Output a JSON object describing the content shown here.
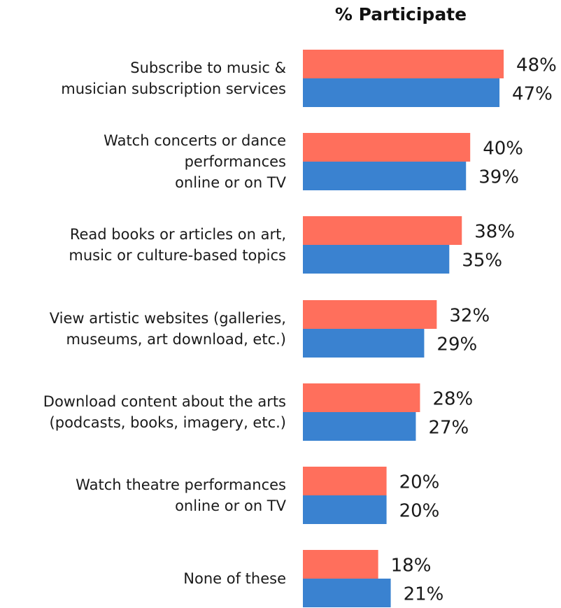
{
  "chart_data": {
    "type": "bar",
    "orientation": "horizontal",
    "title": "% Participate",
    "xlabel": "",
    "ylabel": "",
    "xlim": [
      0,
      50
    ],
    "grid": false,
    "legend": "none",
    "categories": [
      "Subscribe to music &\nmusician subscription services",
      "Watch concerts or dance\nperformances\nonline or on TV",
      "Read books or articles on art,\nmusic or culture-based topics",
      "View artistic websites (galleries,\nmuseums, art download, etc.)",
      "Download content about the arts\n(podcasts, books, imagery, etc.)",
      "Watch theatre performances\nonline or on TV",
      "None of these"
    ],
    "series": [
      {
        "color": "#FF6F5C",
        "values": [
          48,
          40,
          38,
          32,
          28,
          20,
          18
        ],
        "labels": [
          "48%",
          "40%",
          "38%",
          "32%",
          "28%",
          "20%",
          "18%"
        ]
      },
      {
        "color": "#3A82D0",
        "values": [
          47,
          39,
          35,
          29,
          27,
          20,
          21
        ],
        "labels": [
          "47%",
          "39%",
          "35%",
          "29%",
          "27%",
          "20%",
          "21%"
        ]
      }
    ]
  }
}
